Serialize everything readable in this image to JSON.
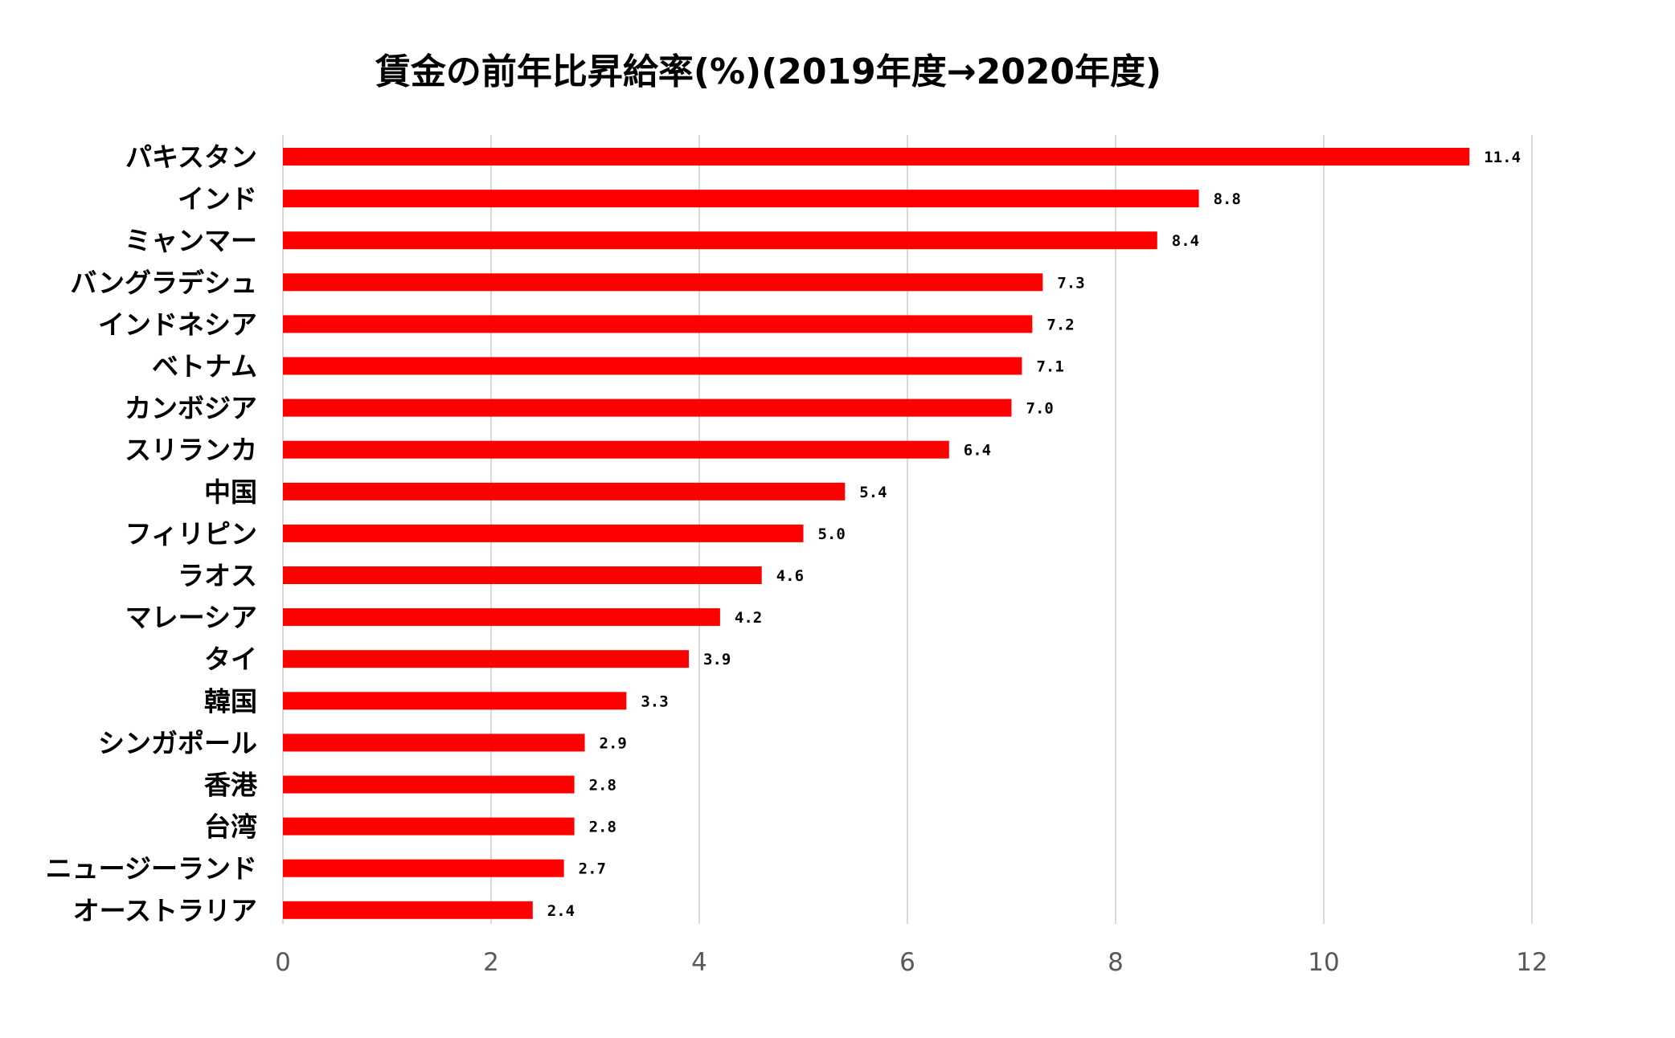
{
  "chart_data": {
    "type": "bar",
    "orientation": "horizontal",
    "title": "賃金の前年比昇給率(%)(2019年度→2020年度)",
    "categories": [
      "パキスタン",
      "インド",
      "ミャンマー",
      "バングラデシュ",
      "インドネシア",
      "ベトナム",
      "カンボジア",
      "スリランカ",
      "中国",
      "フィリピン",
      "ラオス",
      "マレーシア",
      "タイ",
      "韓国",
      "シンガポール",
      "香港",
      "台湾",
      "ニュージーランド",
      "オーストラリア"
    ],
    "values": [
      11.4,
      8.8,
      8.4,
      7.3,
      7.2,
      7.1,
      7.0,
      6.4,
      5.4,
      5.0,
      4.6,
      4.2,
      3.9,
      3.3,
      2.9,
      2.8,
      2.8,
      2.7,
      2.4
    ],
    "value_labels": [
      "11.4",
      "8.8",
      "8.4",
      "7.3",
      "7.2",
      "7.1",
      "7.0",
      "6.4",
      "5.4",
      "5.0",
      "4.6",
      "4.2",
      "3.9",
      "3.3",
      "2.9",
      "2.8",
      "2.8",
      "2.7",
      "2.4"
    ],
    "xticks": [
      "0",
      "2",
      "4",
      "6",
      "8",
      "10",
      "12"
    ],
    "xlim": [
      0,
      12
    ],
    "xlabel": "",
    "ylabel": "",
    "grid": "vertical",
    "legend": "none",
    "bar_color": "#ff0000",
    "grid_color": "#d9d9d9",
    "tick_color": "#595959"
  }
}
